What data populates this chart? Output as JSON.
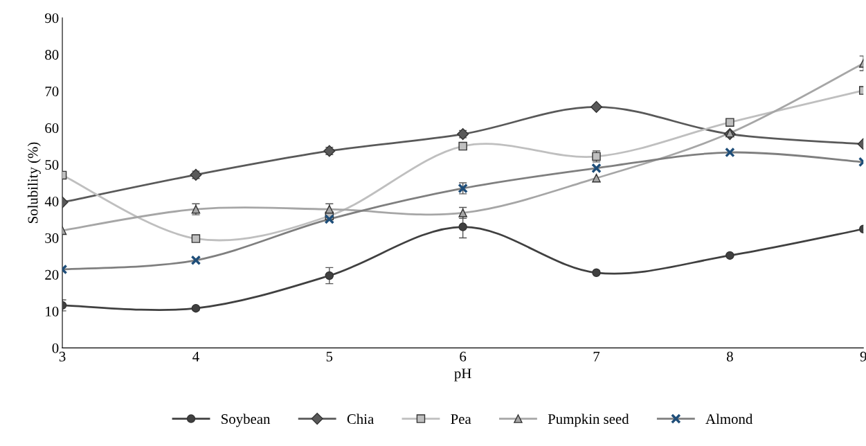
{
  "chart_data": {
    "type": "line",
    "xlabel": "pH",
    "ylabel": "Solubility (%)",
    "x": [
      3,
      4,
      5,
      6,
      7,
      8,
      9
    ],
    "series": [
      {
        "name": "Soybean",
        "color": "#404040",
        "marker": "circle",
        "values": [
          11.6,
          10.8,
          19.7,
          33,
          20.5,
          25.2,
          32.4
        ],
        "errors": [
          1.5,
          null,
          2.2,
          3,
          null,
          null,
          null
        ]
      },
      {
        "name": "Chia",
        "color": "#595959",
        "marker": "diamond",
        "values": [
          39.7,
          47.2,
          53.7,
          58.3,
          65.7,
          58.3,
          55.6
        ],
        "errors": [
          null,
          1,
          1,
          1,
          null,
          null,
          null
        ]
      },
      {
        "name": "Pea",
        "color": "#bfbfbf",
        "marker": "square",
        "values": [
          47.1,
          29.8,
          36,
          55,
          52.2,
          61.5,
          70.2
        ],
        "errors": [
          null,
          null,
          null,
          null,
          1.5,
          null,
          null
        ]
      },
      {
        "name": "Pumpkin seed",
        "color": "#a6a6a6",
        "marker": "triangle",
        "values": [
          32,
          37.8,
          37.8,
          36.8,
          46.3,
          58.6,
          77.6
        ],
        "errors": [
          null,
          1.5,
          1.5,
          1.5,
          null,
          null,
          2
        ]
      },
      {
        "name": "Almond",
        "color": "#7f7f7f",
        "marker": "cross",
        "values": [
          21.4,
          23.9,
          35.1,
          43.5,
          49,
          53.3,
          50.7
        ],
        "errors": [
          null,
          null,
          null,
          1.5,
          null,
          null,
          null
        ]
      }
    ],
    "xlim": [
      3,
      9
    ],
    "xticks": [
      3,
      4,
      5,
      6,
      7,
      8,
      9
    ],
    "ylim": [
      0,
      90
    ],
    "yticks": [
      0,
      10,
      20,
      30,
      40,
      50,
      60,
      70,
      80,
      90
    ],
    "grid": false,
    "legend": "bottom",
    "line_style": "solid"
  }
}
